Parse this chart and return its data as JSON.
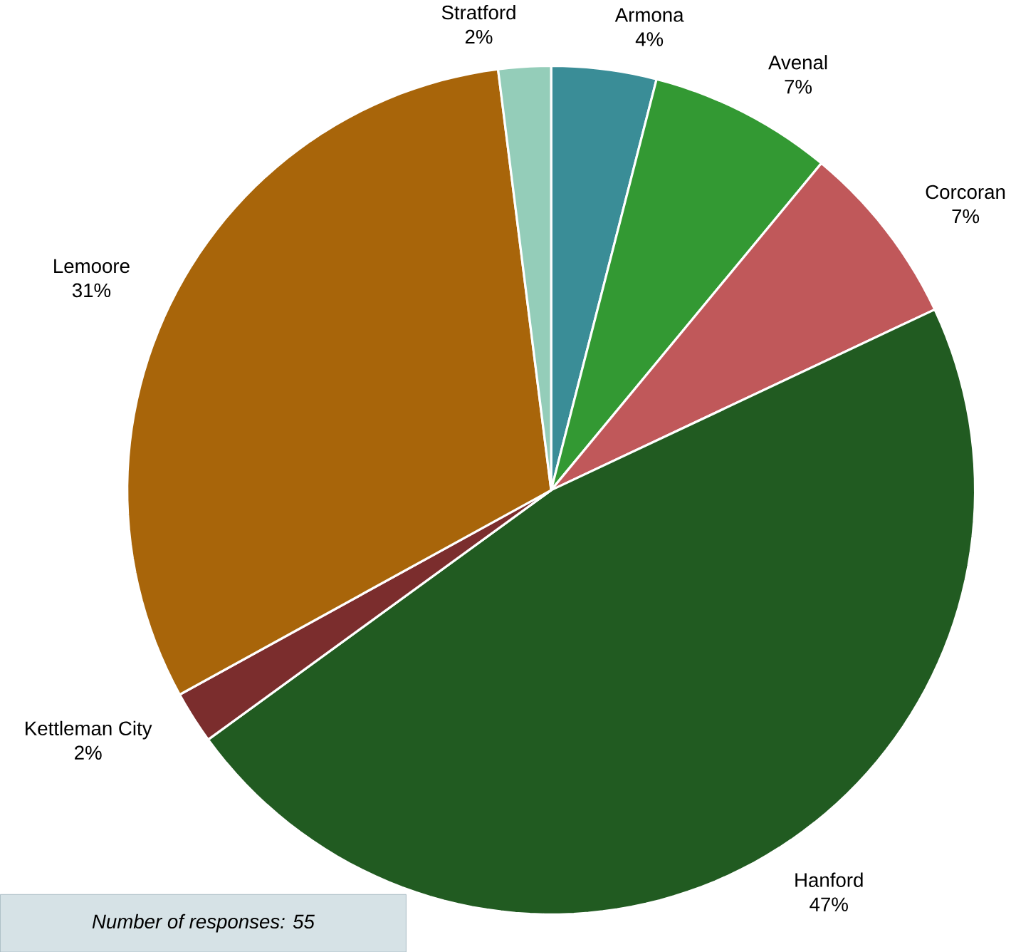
{
  "chart_data": {
    "type": "pie",
    "categories": [
      "Armona",
      "Avenal",
      "Corcoran",
      "Hanford",
      "Kettleman City",
      "Lemoore",
      "Stratford"
    ],
    "values": [
      4,
      7,
      7,
      47,
      2,
      31,
      2
    ],
    "value_labels": [
      "4%",
      "7%",
      "7%",
      "47%",
      "2%",
      "31%",
      "2%"
    ],
    "colors": [
      "#3a8d97",
      "#339933",
      "#c0585a",
      "#215b21",
      "#7b2d2d",
      "#a8650a",
      "#94cdb9"
    ],
    "annotations": [
      "Number of responses: 55"
    ]
  }
}
